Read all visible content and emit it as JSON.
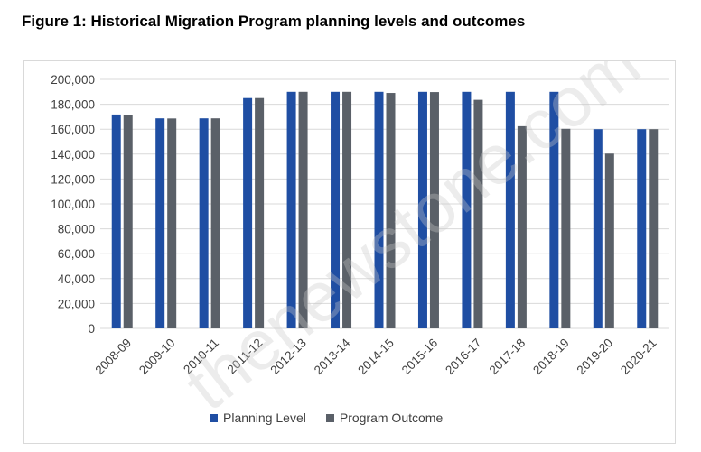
{
  "figure": {
    "title": "Figure 1: Historical Migration Program planning levels and outcomes"
  },
  "watermark": {
    "text": "thenewstone.com"
  },
  "colors": {
    "planning": "#1f4ea3",
    "outcome": "#5a6068",
    "grid": "#d9d9d9",
    "axis_text": "#404040"
  },
  "chart_data": {
    "type": "bar",
    "title": "",
    "xlabel": "",
    "ylabel": "",
    "ylim": [
      0,
      200000
    ],
    "yticks": [
      0,
      20000,
      40000,
      60000,
      80000,
      100000,
      120000,
      140000,
      160000,
      180000,
      200000
    ],
    "ytick_labels": [
      "0",
      "20,000",
      "40,000",
      "60,000",
      "80,000",
      "100,000",
      "120,000",
      "140,000",
      "160,000",
      "180,000",
      "200,000"
    ],
    "grid": true,
    "legend_position": "bottom",
    "categories": [
      "2008-09",
      "2009-10",
      "2010-11",
      "2011-12",
      "2012-13",
      "2013-14",
      "2014-15",
      "2015-16",
      "2016-17",
      "2017-18",
      "2018-19",
      "2019-20",
      "2020-21"
    ],
    "series": [
      {
        "name": "Planning Level",
        "color": "#1f4ea3",
        "values": [
          171800,
          168700,
          168700,
          185000,
          190000,
          190000,
          190000,
          190000,
          190000,
          190000,
          190000,
          160000,
          160000
        ]
      },
      {
        "name": "Program Outcome",
        "color": "#5a6068",
        "values": [
          171300,
          168600,
          168700,
          185000,
          190000,
          190000,
          189100,
          189800,
          183600,
          162400,
          160300,
          140400,
          160000
        ]
      }
    ]
  }
}
